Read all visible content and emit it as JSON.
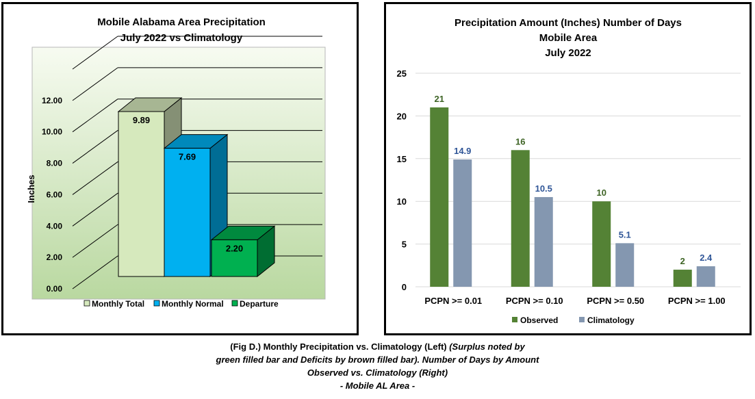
{
  "chart_data": [
    {
      "type": "bar",
      "title": "Mobile Alabama Area Precipitation",
      "subtitle": "July 2022 vs Climatology",
      "ylabel": "Inches",
      "ylim": [
        0,
        14
      ],
      "yticks": [
        "0.00",
        "2.00",
        "4.00",
        "6.00",
        "8.00",
        "10.00",
        "12.00"
      ],
      "grid": true,
      "legend_position": "bottom",
      "series": [
        {
          "name": "Monthly Total",
          "values": [
            9.89
          ],
          "label": "9.89",
          "color": "#d6e9bd"
        },
        {
          "name": "Monthly Normal",
          "values": [
            7.69
          ],
          "label": "7.69",
          "color": "#00b0f0"
        },
        {
          "name": "Departure",
          "values": [
            2.2
          ],
          "label": "2.20",
          "color": "#00b050"
        }
      ]
    },
    {
      "type": "bar",
      "title": "Precipitation Amount (Inches) Number of Days",
      "subtitle_lines": [
        "Mobile Area",
        "July 2022"
      ],
      "categories": [
        "PCPN >= 0.01",
        "PCPN >= 0.10",
        "PCPN >= 0.50",
        "PCPN >= 1.00"
      ],
      "ylim": [
        0,
        25
      ],
      "yticks": [
        "0",
        "5",
        "10",
        "15",
        "20",
        "25"
      ],
      "grid": true,
      "legend_position": "bottom",
      "series": [
        {
          "name": "Observed",
          "values": [
            21,
            16,
            10,
            2
          ],
          "labels": [
            "21",
            "16",
            "10",
            "2"
          ],
          "color": "#548235"
        },
        {
          "name": "Climatology",
          "values": [
            14.9,
            10.5,
            5.1,
            2.4
          ],
          "labels": [
            "14.9",
            "10.5",
            "5.1",
            "2.4"
          ],
          "color": "#8497b0"
        }
      ]
    }
  ],
  "caption": {
    "line1_normal": "(Fig D.) Monthly Precipitation vs. Climatology (Left) ",
    "line1_italic": "(Surplus noted by",
    "line2": "green filled bar and Deficits by brown filled bar). Number of Days by Amount",
    "line3": "Observed vs. Climatology (Right)",
    "line4": "- Mobile AL Area -"
  }
}
